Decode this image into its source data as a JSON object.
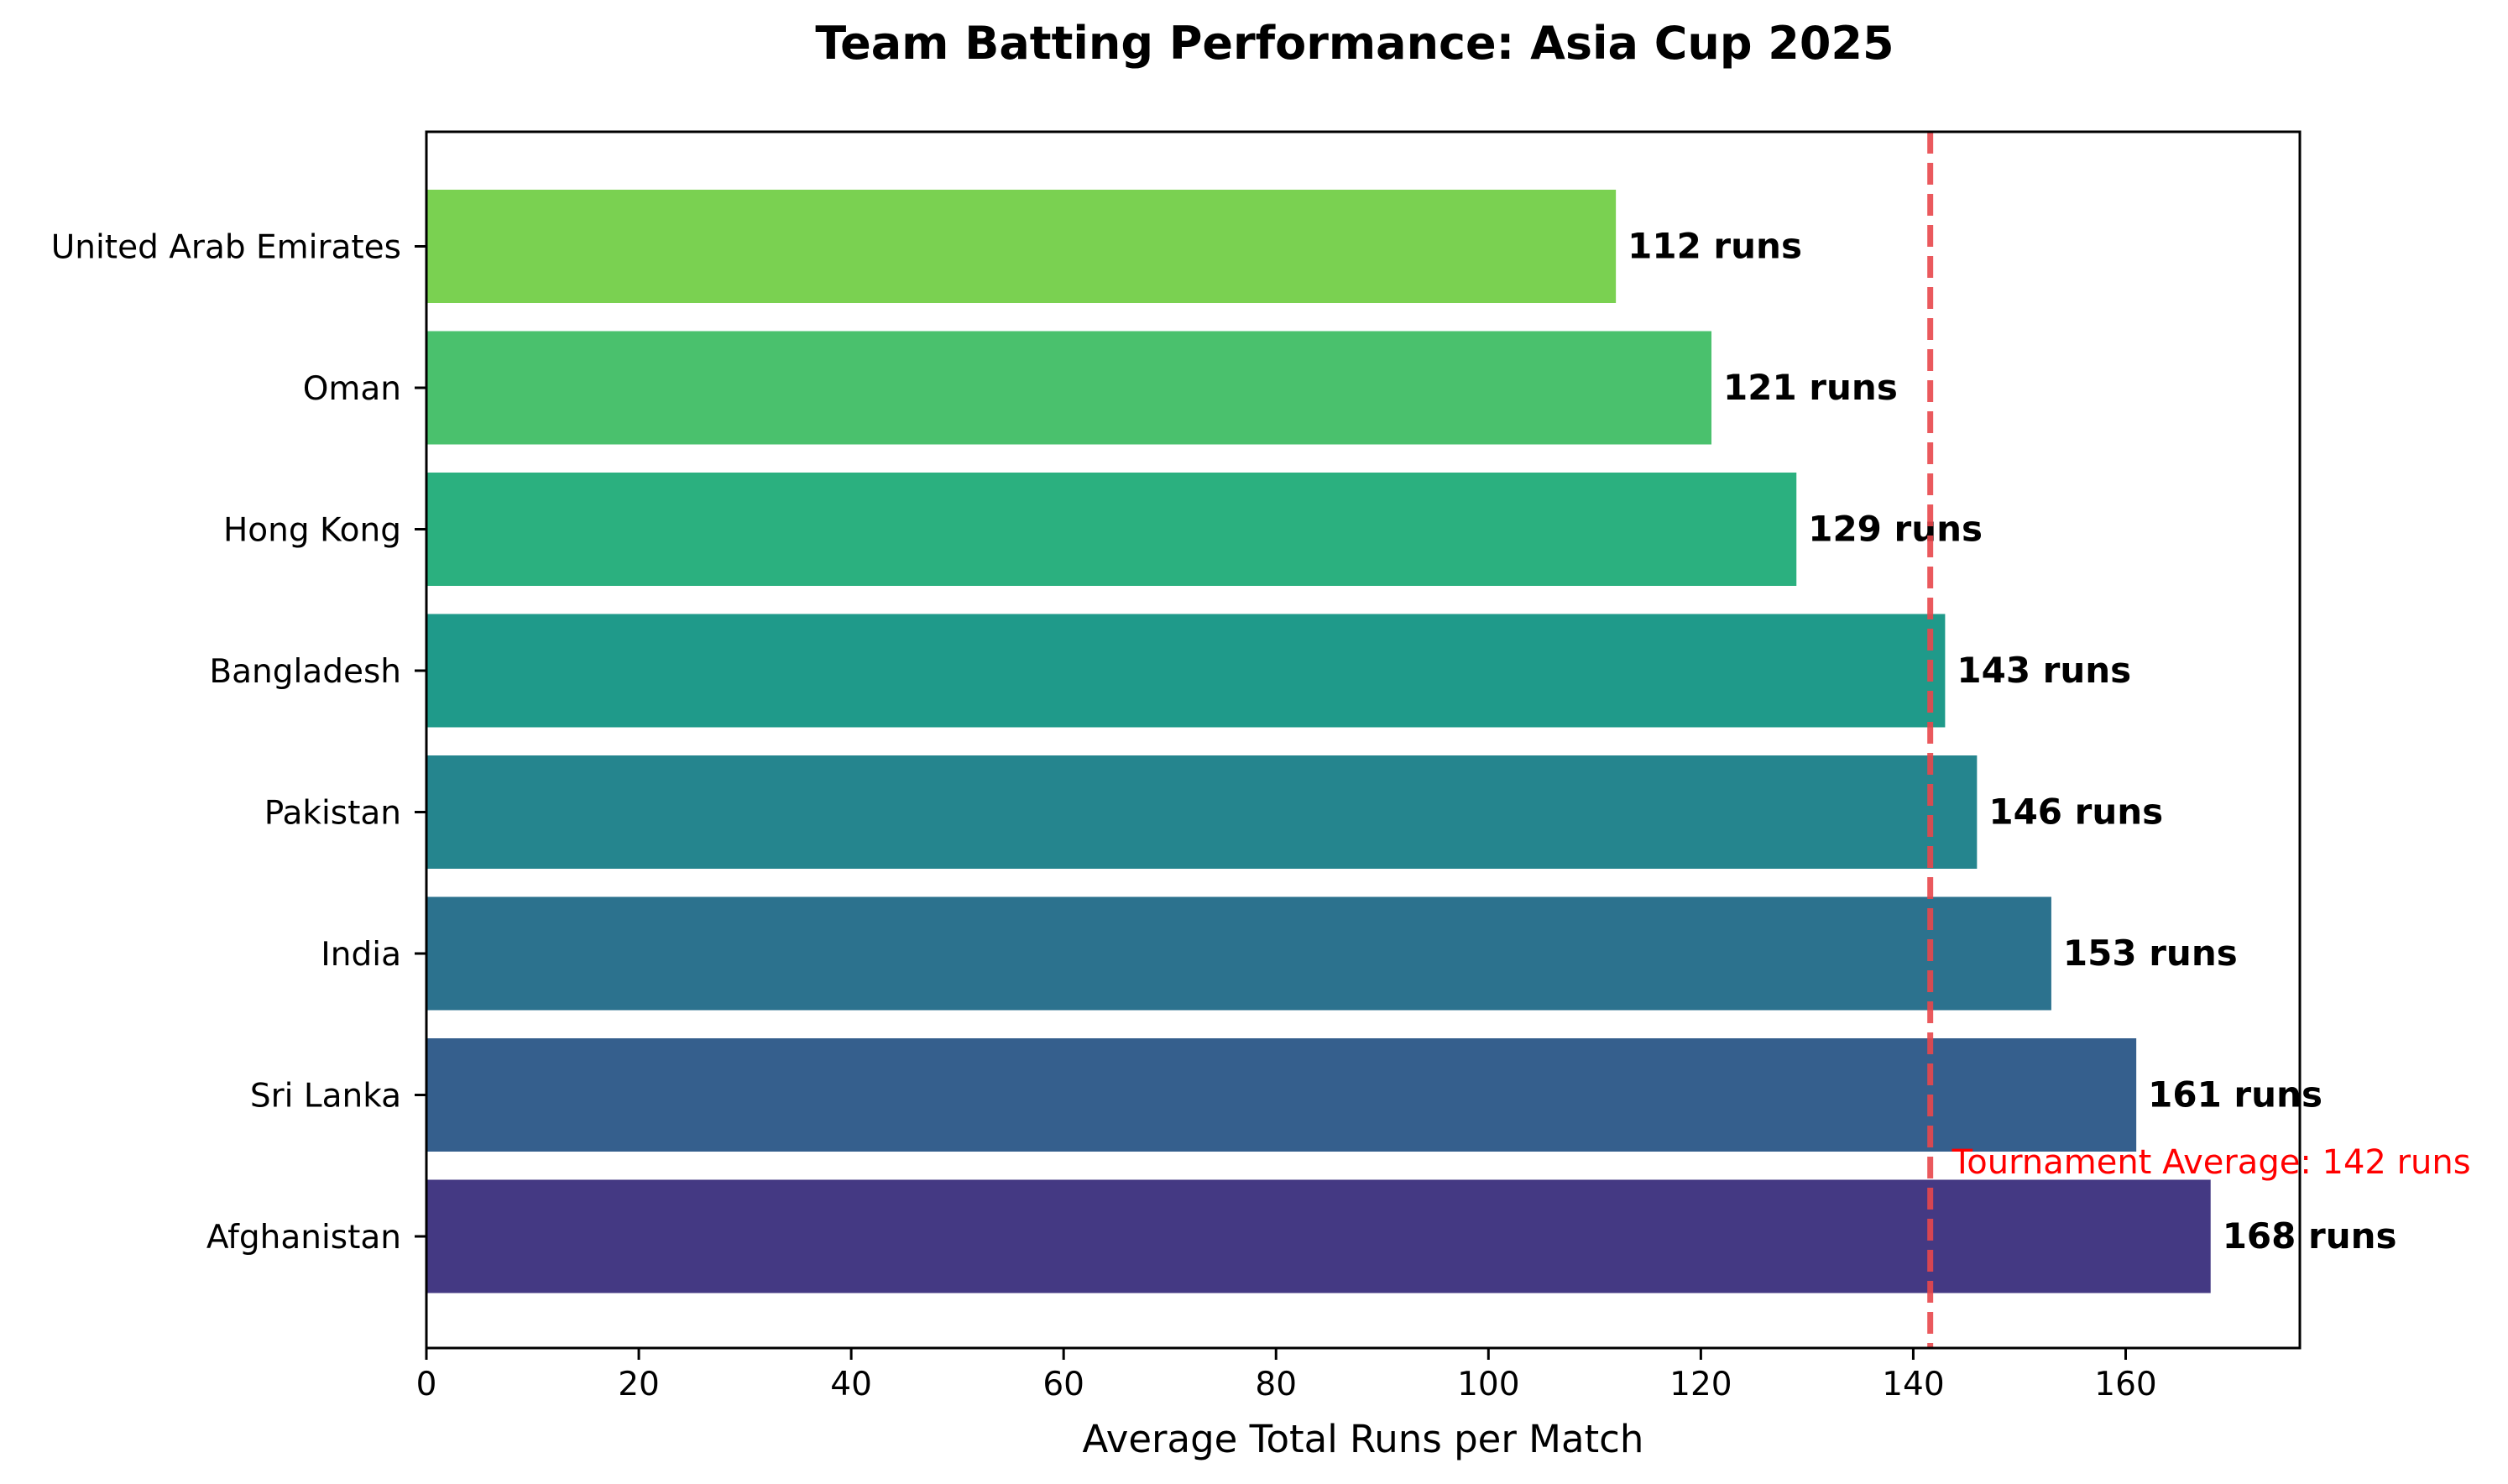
{
  "chart_data": {
    "type": "bar",
    "orientation": "horizontal",
    "title": "Team Batting Performance: Asia Cup 2025",
    "xlabel": "Average Total Runs per Match",
    "ylabel": "",
    "categories": [
      "Afghanistan",
      "Sri Lanka",
      "India",
      "Pakistan",
      "Bangladesh",
      "Hong Kong",
      "Oman",
      "United Arab Emirates"
    ],
    "values": [
      168,
      161,
      153,
      146,
      143,
      129,
      121,
      112
    ],
    "bar_colors": [
      "#443983",
      "#355f8d",
      "#2c728e",
      "#25858e",
      "#1f9a8a",
      "#2bb07f",
      "#4ac16d",
      "#7ad151"
    ],
    "data_labels": [
      "168 runs",
      "161 runs",
      "153 runs",
      "146 runs",
      "143 runs",
      "129 runs",
      "121 runs",
      "112 runs"
    ],
    "xlim": [
      0,
      176.4
    ],
    "xticks": [
      0,
      20,
      40,
      60,
      80,
      100,
      120,
      140,
      160
    ],
    "xtick_labels": [
      "0",
      "20",
      "40",
      "60",
      "80",
      "100",
      "120",
      "140",
      "160"
    ],
    "grid": false,
    "legend": "none",
    "reference_line": {
      "value": 141.6,
      "label": "Tournament Average: 142 runs",
      "color": "#e8474b",
      "style": "dashed"
    }
  }
}
